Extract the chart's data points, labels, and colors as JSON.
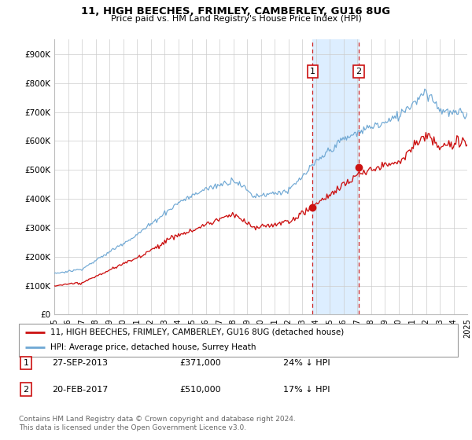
{
  "title": "11, HIGH BEECHES, FRIMLEY, CAMBERLEY, GU16 8UG",
  "subtitle": "Price paid vs. HM Land Registry's House Price Index (HPI)",
  "ylim": [
    0,
    950000
  ],
  "yticks": [
    0,
    100000,
    200000,
    300000,
    400000,
    500000,
    600000,
    700000,
    800000,
    900000
  ],
  "yticklabels": [
    "£0",
    "£100K",
    "£200K",
    "£300K",
    "£400K",
    "£500K",
    "£600K",
    "£700K",
    "£800K",
    "£900K"
  ],
  "hpi_color": "#6fa8d4",
  "price_color": "#cc1111",
  "shade_color": "#ddeeff",
  "transaction1_date": 2013.75,
  "transaction1_price": 371000,
  "transaction1_label": "1",
  "transaction2_date": 2017.12,
  "transaction2_price": 510000,
  "transaction2_label": "2",
  "legend1_text": "11, HIGH BEECHES, FRIMLEY, CAMBERLEY, GU16 8UG (detached house)",
  "legend2_text": "HPI: Average price, detached house, Surrey Heath",
  "table_row1": [
    "1",
    "27-SEP-2013",
    "£371,000",
    "24% ↓ HPI"
  ],
  "table_row2": [
    "2",
    "20-FEB-2017",
    "£510,000",
    "17% ↓ HPI"
  ],
  "footer": "Contains HM Land Registry data © Crown copyright and database right 2024.\nThis data is licensed under the Open Government Licence v3.0.",
  "xstart": 1995,
  "xend": 2025
}
